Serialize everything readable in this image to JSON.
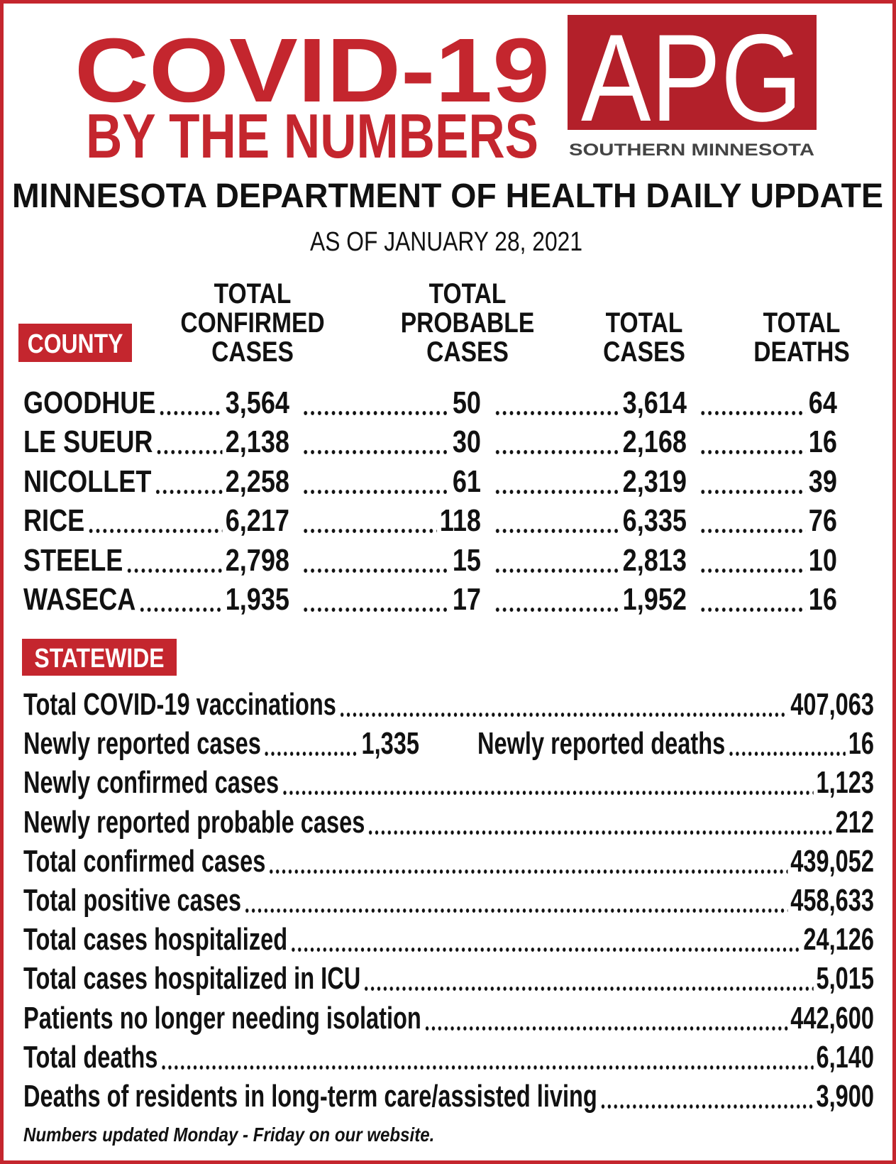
{
  "header": {
    "title": "COVID-19",
    "subtitle": "BY THE NUMBERS",
    "logo": "APG",
    "logo_caption": "SOUTHERN MINNESOTA"
  },
  "report": {
    "title": "MINNESOTA DEPARTMENT OF HEALTH DAILY UPDATE",
    "date": "AS OF JANUARY 28, 2021"
  },
  "county_table": {
    "columns": [
      [
        "COUNTY"
      ],
      [
        "TOTAL",
        "CONFIRMED",
        "CASES"
      ],
      [
        "TOTAL",
        "PROBABLE",
        "CASES"
      ],
      [
        "TOTAL",
        "CASES"
      ],
      [
        "TOTAL",
        "DEATHS"
      ]
    ],
    "rows": [
      [
        "GOODHUE",
        "3,564",
        "50",
        "3,614",
        "64"
      ],
      [
        "LE SUEUR",
        "2,138",
        "30",
        "2,168",
        "16"
      ],
      [
        "NICOLLET",
        "2,258",
        "61",
        "2,319",
        "39"
      ],
      [
        "RICE",
        "6,217",
        "118",
        "6,335",
        "76"
      ],
      [
        "STEELE",
        "2,798",
        "15",
        "2,813",
        "10"
      ],
      [
        "WASECA",
        "1,935",
        "17",
        "1,952",
        "16"
      ]
    ]
  },
  "statewide": {
    "label": "STATEWIDE",
    "rows": [
      [
        {
          "label": "Total COVID-19 vaccinations",
          "value": "407,063"
        }
      ],
      [
        {
          "label": "Newly reported cases",
          "value": "1,335"
        },
        {
          "label": "Newly reported deaths",
          "value": "16"
        }
      ],
      [
        {
          "label": "Newly confirmed cases",
          "value": "1,123"
        }
      ],
      [
        {
          "label": "Newly reported probable cases",
          "value": "212"
        }
      ],
      [
        {
          "label": "Total confirmed cases",
          "value": "439,052"
        }
      ],
      [
        {
          "label": "Total positive cases",
          "value": "458,633"
        }
      ],
      [
        {
          "label": "Total cases hospitalized",
          "value": "24,126"
        }
      ],
      [
        {
          "label": "Total cases hospitalized in ICU",
          "value": "5,015"
        }
      ],
      [
        {
          "label": "Patients no longer needing isolation",
          "value": "442,600"
        }
      ],
      [
        {
          "label": "Total deaths",
          "value": "6,140"
        }
      ],
      [
        {
          "label": "Deaths of residents in long-term care/assisted living",
          "value": "3,900"
        }
      ]
    ]
  },
  "footnote": "Numbers updated Monday - Friday on our website."
}
